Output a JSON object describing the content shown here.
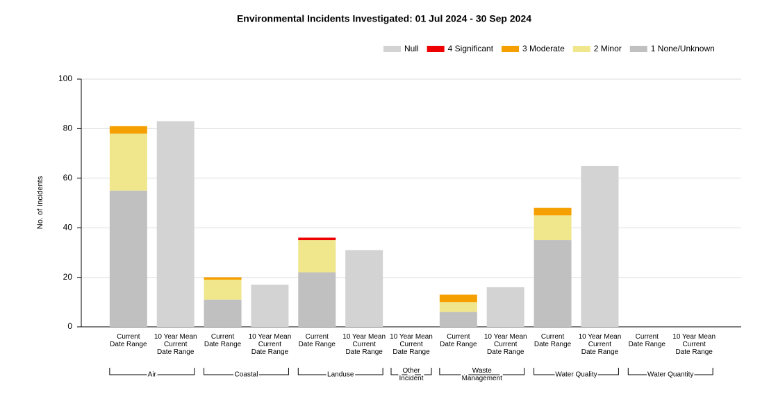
{
  "chart_data": {
    "type": "stacked-bar",
    "title": "Environmental Incidents Investigated: 01 Jul 2024 - 30 Sep 2024",
    "y_label": "No. of Incidents",
    "groups": [
      {
        "name": "Air",
        "categories": [
          "Current Date Range",
          "10 Year Mean Current Date Range"
        ]
      },
      {
        "name": "Coastal",
        "categories": [
          "Current Date Range",
          "10 Year Mean Current Date Range"
        ]
      },
      {
        "name": "Landuse",
        "categories": [
          "Current Date Range",
          "10 Year Mean Current Date Range"
        ]
      },
      {
        "name": "Other Incident",
        "categories": [
          "10 Year Mean Current Date Range"
        ]
      },
      {
        "name": "Waste Management",
        "categories": [
          "Current Date Range",
          "10 Year Mean Current Date Range"
        ]
      },
      {
        "name": "Water Quality",
        "categories": [
          "Current Date Range",
          "10 Year Mean Current Date Range"
        ]
      },
      {
        "name": "Water Quantity",
        "categories": [
          "Current Date Range",
          "10 Year Mean Current Date Range"
        ]
      }
    ],
    "series": [
      {
        "name": "Null",
        "color": "#d3d3d3",
        "values": [
          0,
          83,
          0,
          17,
          0,
          31,
          0,
          0,
          16,
          0,
          65,
          0,
          0
        ]
      },
      {
        "name": "4 Significant",
        "color": "#ee0000",
        "values": [
          0,
          0,
          0,
          0,
          1,
          0,
          0,
          0,
          0,
          0,
          0,
          0,
          0
        ]
      },
      {
        "name": "3 Moderate",
        "color": "#f5a000",
        "values": [
          3,
          0,
          1,
          0,
          0,
          0,
          0,
          3,
          0,
          3,
          0,
          0,
          0
        ]
      },
      {
        "name": "2 Minor",
        "color": "#f0e68c",
        "values": [
          23,
          0,
          8,
          0,
          13,
          0,
          0,
          4,
          0,
          10,
          0,
          0,
          0
        ]
      },
      {
        "name": "1 None/Unknown",
        "color": "#c0c0c0",
        "values": [
          55,
          0,
          11,
          0,
          22,
          0,
          0,
          6,
          0,
          35,
          0,
          0,
          0
        ]
      }
    ],
    "ylim": [
      0,
      100
    ],
    "yticks": [
      0,
      20,
      40,
      60,
      80,
      100
    ],
    "grid": true,
    "legend": "top-right"
  }
}
